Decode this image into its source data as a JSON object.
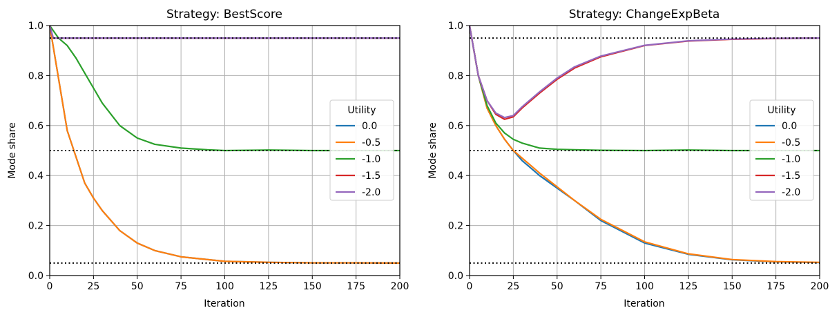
{
  "chart_data": [
    {
      "type": "line",
      "title": "Strategy: BestScore",
      "xlabel": "Iteration",
      "ylabel": "Mode share",
      "xlim": [
        0,
        200
      ],
      "ylim": [
        0.0,
        1.0
      ],
      "xticks": [
        "0",
        "25",
        "50",
        "75",
        "100",
        "125",
        "150",
        "175",
        "200"
      ],
      "yticks": [
        "0.0",
        "0.2",
        "0.4",
        "0.6",
        "0.8",
        "1.0"
      ],
      "grid": true,
      "legend": {
        "title": "Utility",
        "placement": "center-right"
      },
      "reference_lines": [
        0.95,
        0.5,
        0.05
      ],
      "series": [
        {
          "name": "0.0",
          "color": "#1f77b4",
          "x": [
            0,
            10,
            20,
            25,
            30,
            40,
            50,
            60,
            75,
            100,
            125,
            150,
            175,
            200
          ],
          "y": [
            1.0,
            0.58,
            0.37,
            0.31,
            0.26,
            0.18,
            0.13,
            0.1,
            0.075,
            0.057,
            0.053,
            0.051,
            0.051,
            0.05
          ]
        },
        {
          "name": "-0.5",
          "color": "#ff7f0e",
          "x": [
            0,
            10,
            20,
            25,
            30,
            40,
            50,
            60,
            75,
            100,
            125,
            150,
            175,
            200
          ],
          "y": [
            1.0,
            0.58,
            0.37,
            0.31,
            0.26,
            0.18,
            0.13,
            0.1,
            0.075,
            0.057,
            0.053,
            0.051,
            0.051,
            0.05
          ]
        },
        {
          "name": "-1.0",
          "color": "#2ca02c",
          "x": [
            0,
            5,
            10,
            15,
            20,
            25,
            30,
            40,
            50,
            60,
            75,
            90,
            100,
            125,
            150,
            175,
            200
          ],
          "y": [
            1.0,
            0.95,
            0.92,
            0.87,
            0.81,
            0.75,
            0.69,
            0.6,
            0.55,
            0.525,
            0.51,
            0.503,
            0.5,
            0.502,
            0.5,
            0.5,
            0.5
          ]
        },
        {
          "name": "-1.5",
          "color": "#d62728",
          "x": [
            0,
            2,
            200
          ],
          "y": [
            1.0,
            0.95,
            0.95
          ]
        },
        {
          "name": "-2.0",
          "color": "#9467bd",
          "x": [
            0,
            2,
            200
          ],
          "y": [
            1.0,
            0.95,
            0.95
          ]
        }
      ]
    },
    {
      "type": "line",
      "title": "Strategy: ChangeExpBeta",
      "xlabel": "Iteration",
      "ylabel": "Mode share",
      "xlim": [
        0,
        200
      ],
      "ylim": [
        0.0,
        1.0
      ],
      "xticks": [
        "0",
        "25",
        "50",
        "75",
        "100",
        "125",
        "150",
        "175",
        "200"
      ],
      "yticks": [
        "0.0",
        "0.2",
        "0.4",
        "0.6",
        "0.8",
        "1.0"
      ],
      "grid": true,
      "legend": {
        "title": "Utility",
        "placement": "center-right"
      },
      "reference_lines": [
        0.95,
        0.5,
        0.05
      ],
      "series": [
        {
          "name": "0.0",
          "color": "#1f77b4",
          "x": [
            0,
            5,
            10,
            15,
            20,
            25,
            30,
            40,
            50,
            60,
            75,
            100,
            125,
            150,
            175,
            200
          ],
          "y": [
            1.0,
            0.8,
            0.67,
            0.6,
            0.545,
            0.5,
            0.46,
            0.4,
            0.35,
            0.3,
            0.22,
            0.13,
            0.085,
            0.063,
            0.055,
            0.052
          ]
        },
        {
          "name": "-0.5",
          "color": "#ff7f0e",
          "x": [
            0,
            5,
            10,
            15,
            20,
            25,
            30,
            40,
            50,
            60,
            75,
            100,
            125,
            150,
            175,
            200
          ],
          "y": [
            1.0,
            0.8,
            0.67,
            0.6,
            0.545,
            0.5,
            0.47,
            0.41,
            0.355,
            0.3,
            0.225,
            0.135,
            0.087,
            0.064,
            0.056,
            0.053
          ]
        },
        {
          "name": "-1.0",
          "color": "#2ca02c",
          "x": [
            0,
            5,
            10,
            15,
            20,
            25,
            30,
            40,
            50,
            60,
            75,
            100,
            125,
            150,
            175,
            200
          ],
          "y": [
            1.0,
            0.8,
            0.68,
            0.61,
            0.57,
            0.545,
            0.53,
            0.51,
            0.505,
            0.503,
            0.501,
            0.5,
            0.502,
            0.5,
            0.5,
            0.5
          ]
        },
        {
          "name": "-1.5",
          "color": "#d62728",
          "x": [
            0,
            5,
            10,
            15,
            20,
            25,
            30,
            40,
            50,
            60,
            75,
            100,
            125,
            150,
            175,
            200
          ],
          "y": [
            1.0,
            0.8,
            0.7,
            0.645,
            0.625,
            0.635,
            0.67,
            0.73,
            0.785,
            0.83,
            0.875,
            0.92,
            0.938,
            0.945,
            0.948,
            0.95
          ]
        },
        {
          "name": "-2.0",
          "color": "#9467bd",
          "x": [
            0,
            5,
            10,
            15,
            20,
            25,
            30,
            40,
            50,
            60,
            75,
            100,
            125,
            150,
            175,
            200
          ],
          "y": [
            1.0,
            0.8,
            0.7,
            0.65,
            0.632,
            0.64,
            0.675,
            0.735,
            0.79,
            0.835,
            0.878,
            0.921,
            0.939,
            0.946,
            0.949,
            0.95
          ]
        }
      ]
    }
  ]
}
